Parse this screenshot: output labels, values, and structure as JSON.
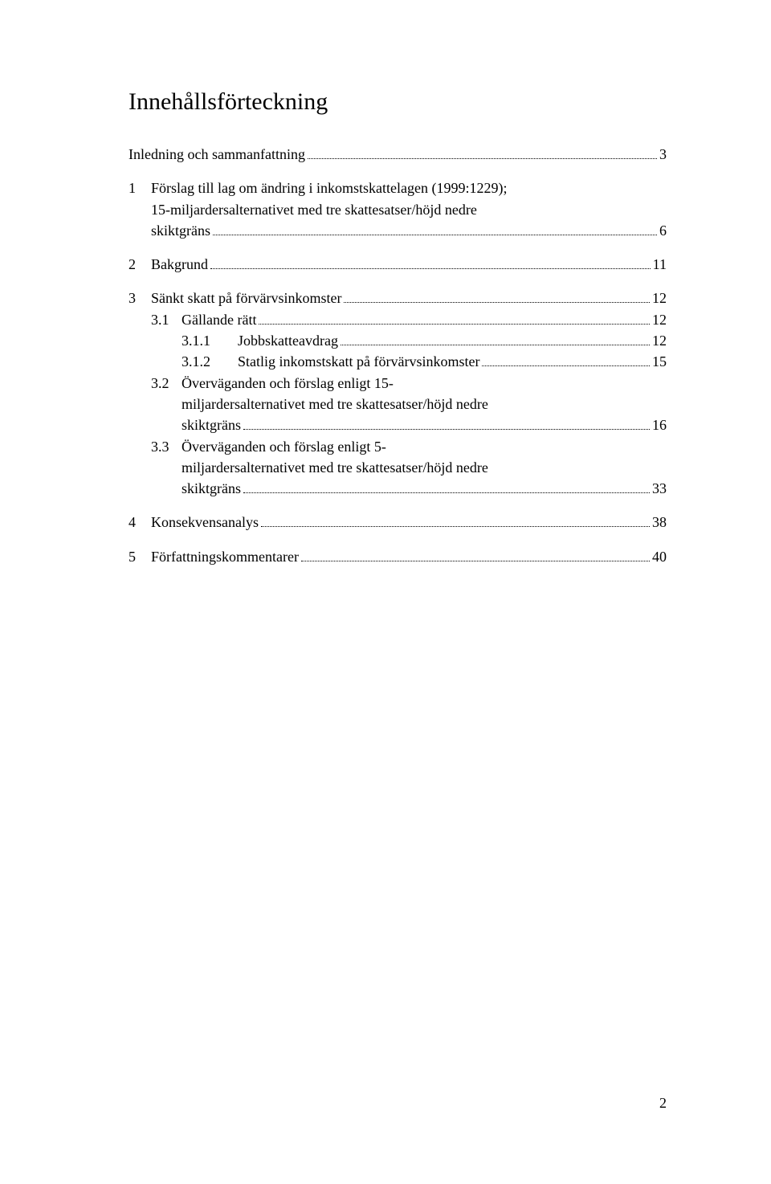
{
  "title": "Innehållsförteckning",
  "footer_page": "2",
  "colors": {
    "text": "#000000",
    "bg": "#ffffff"
  },
  "typography": {
    "body_fontsize_pt": 13,
    "title_fontsize_pt": 22,
    "font_family": "Times New Roman"
  },
  "entries": {
    "e0": {
      "label": "Inledning och sammanfattning",
      "page": "3"
    },
    "e1": {
      "num": "1",
      "label_a": "Förslag till lag om ändring i inkomstskattelagen (1999:1229);",
      "label_b": "15-miljardersalternativet med tre skattesatser/höjd nedre",
      "label_c": "skiktgräns",
      "page": "6"
    },
    "e2": {
      "num": "2",
      "label": "Bakgrund",
      "page": "11"
    },
    "e3": {
      "num": "3",
      "label": "Sänkt skatt på förvärvsinkomster",
      "page": "12"
    },
    "e31": {
      "num": "3.1",
      "label": "Gällande rätt",
      "page": "12"
    },
    "e311": {
      "num": "3.1.1",
      "label": "Jobbskatteavdrag",
      "page": "12"
    },
    "e312": {
      "num": "3.1.2",
      "label": "Statlig inkomstskatt på förvärvsinkomster",
      "page": "15"
    },
    "e32": {
      "num": "3.2",
      "label_a": "Överväganden och förslag enligt 15-",
      "label_b": "miljardersalternativet med tre skattesatser/höjd nedre",
      "label_c": "skiktgräns",
      "page": "16"
    },
    "e33": {
      "num": "3.3",
      "label_a": "Överväganden och förslag enligt 5-",
      "label_b": "miljardersalternativet med tre skattesatser/höjd nedre",
      "label_c": "skiktgräns",
      "page": "33"
    },
    "e4": {
      "num": "4",
      "label": "Konsekvensanalys",
      "page": "38"
    },
    "e5": {
      "num": "5",
      "label": "Författningskommentarer",
      "page": "40"
    }
  }
}
